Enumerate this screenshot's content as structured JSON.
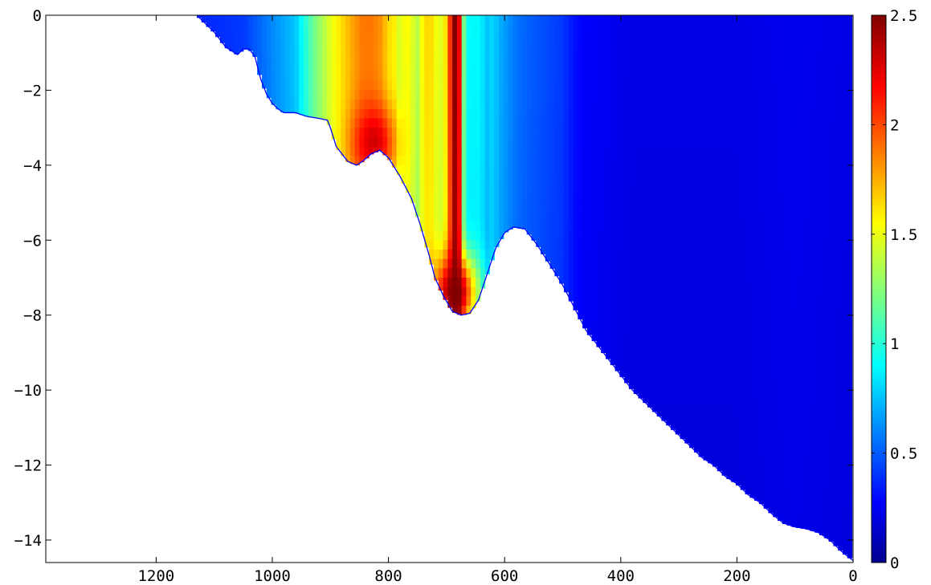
{
  "chart_data": {
    "type": "heatmap",
    "title": "",
    "xlabel": "",
    "ylabel": "",
    "x_reversed": true,
    "xlim": [
      1390,
      0
    ],
    "ylim": [
      -14.6,
      0
    ],
    "xticks": [
      1200,
      1000,
      800,
      600,
      400,
      200,
      0
    ],
    "yticks": [
      0,
      -2,
      -4,
      -6,
      -8,
      -10,
      -12,
      -14
    ],
    "xtick_labels": [
      "1200",
      "1000",
      "800",
      "600",
      "400",
      "200",
      "0"
    ],
    "ytick_labels": [
      "0",
      "−2",
      "−4",
      "−6",
      "−8",
      "−10",
      "−12",
      "−14"
    ],
    "colorbar": {
      "colormap": "jet",
      "range": [
        0,
        2.5
      ],
      "ticks": [
        0,
        0.5,
        1,
        1.5,
        2,
        2.5
      ],
      "tick_labels": [
        "0",
        "0.5",
        "1",
        "1.5",
        "2",
        "2.5"
      ]
    },
    "bed_profile": {
      "x": [
        1130,
        1100,
        1080,
        1060,
        1050,
        1040,
        1030,
        1020,
        1010,
        1000,
        990,
        980,
        960,
        940,
        920,
        905,
        900,
        890,
        870,
        855,
        845,
        830,
        815,
        800,
        780,
        760,
        745,
        730,
        720,
        705,
        690,
        675,
        660,
        645,
        630,
        615,
        600,
        585,
        565,
        545,
        520,
        500,
        480,
        460,
        440,
        420,
        400,
        380,
        360,
        340,
        320,
        300,
        280,
        260,
        240,
        220,
        200,
        180,
        160,
        140,
        120,
        100,
        80,
        60,
        40,
        20,
        0
      ],
      "y": [
        0,
        -0.45,
        -0.85,
        -1.05,
        -0.9,
        -0.9,
        -1.1,
        -1.7,
        -2.1,
        -2.35,
        -2.5,
        -2.6,
        -2.6,
        -2.7,
        -2.75,
        -2.8,
        -3.0,
        -3.5,
        -3.9,
        -4.0,
        -3.9,
        -3.7,
        -3.6,
        -3.8,
        -4.3,
        -4.9,
        -5.6,
        -6.4,
        -7.0,
        -7.5,
        -7.9,
        -8.0,
        -7.95,
        -7.6,
        -6.9,
        -6.2,
        -5.8,
        -5.65,
        -5.7,
        -6.1,
        -6.7,
        -7.2,
        -7.8,
        -8.4,
        -8.8,
        -9.2,
        -9.6,
        -10.0,
        -10.3,
        -10.6,
        -10.9,
        -11.2,
        -11.5,
        -11.8,
        -12.0,
        -12.3,
        -12.5,
        -12.8,
        -13.0,
        -13.3,
        -13.55,
        -13.65,
        -13.7,
        -13.8,
        -14.0,
        -14.3,
        -14.55
      ]
    },
    "profile": {
      "x": [
        1130,
        1050,
        1000,
        960,
        930,
        900,
        880,
        860,
        845,
        830,
        815,
        800,
        790,
        780,
        770,
        760,
        750,
        740,
        730,
        715,
        705,
        698,
        692,
        688,
        684,
        680,
        676,
        672,
        668,
        660,
        650,
        640,
        630,
        620,
        610,
        600,
        580,
        560,
        530,
        500,
        480,
        460,
        420,
        380,
        300,
        200,
        100,
        0
      ],
      "speed": [
        0.4,
        0.45,
        0.65,
        0.8,
        1.2,
        1.5,
        1.65,
        1.8,
        1.9,
        1.9,
        1.85,
        1.65,
        1.6,
        1.45,
        1.6,
        1.5,
        1.4,
        1.6,
        1.7,
        1.5,
        1.5,
        1.8,
        2.2,
        2.5,
        2.5,
        2.45,
        2.0,
        1.4,
        1.05,
        0.9,
        0.95,
        0.9,
        0.8,
        0.85,
        0.75,
        0.7,
        0.6,
        0.55,
        0.5,
        0.45,
        0.35,
        0.3,
        0.28,
        0.25,
        0.25,
        0.25,
        0.28,
        0.25
      ]
    },
    "hotspots": [
      {
        "x": 825,
        "y": -3.4,
        "speed": 2.3
      },
      {
        "x": 685,
        "y": -7.4,
        "speed": 2.5
      }
    ]
  }
}
